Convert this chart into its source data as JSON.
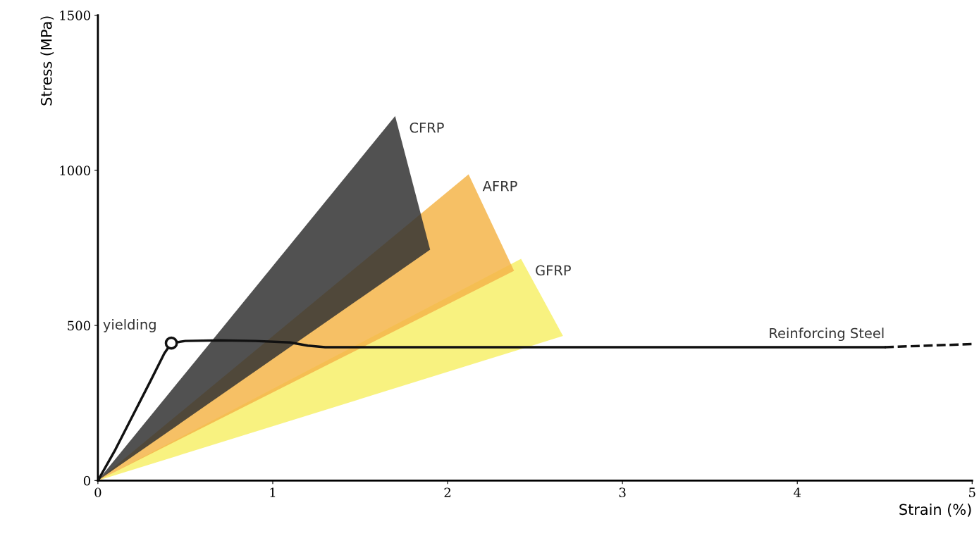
{
  "chart_data": {
    "type": "area",
    "xlabel": "Strain (%)",
    "ylabel": "Stress (MPa)",
    "xlim": [
      0,
      5
    ],
    "ylim": [
      0,
      1500
    ],
    "xticks": [
      0,
      1,
      2,
      3,
      4,
      5
    ],
    "yticks": [
      0,
      500,
      1000,
      1500
    ],
    "grid": false,
    "legend": false,
    "series": [
      {
        "name": "GFRP",
        "color": "#f7f06a",
        "x": [
          0,
          2.42,
          2.66
        ],
        "values": [
          0,
          715,
          466
        ]
      },
      {
        "name": "AFRP",
        "color": "#f5b54a",
        "x": [
          0,
          2.12,
          2.38
        ],
        "values": [
          0,
          987,
          676
        ]
      },
      {
        "name": "CFRP",
        "color": "#333333",
        "x": [
          0,
          1.7,
          1.9
        ],
        "values": [
          0,
          1175,
          744
        ]
      },
      {
        "name": "Reinforcing Steel",
        "type": "line",
        "color": "#111111",
        "line_style": "solid",
        "x": [
          0,
          0.1,
          0.2,
          0.3,
          0.38,
          0.42,
          0.5,
          0.7,
          0.9,
          1.1,
          1.2,
          1.3,
          2,
          3,
          4,
          4.5
        ],
        "values": [
          0,
          100,
          210,
          320,
          410,
          443,
          450,
          452,
          450,
          445,
          435,
          430,
          430,
          430,
          430,
          430
        ]
      },
      {
        "type": "line",
        "color": "#111111",
        "line_style": "dashed",
        "x": [
          4.5,
          5
        ],
        "values": [
          430,
          440
        ]
      },
      {
        "type": "scatter",
        "color": "#111111",
        "marker": "circle",
        "x": [
          0.42
        ],
        "values": [
          443
        ]
      }
    ],
    "annotations": [
      {
        "text": "yielding",
        "x": 0.42,
        "y": 443
      }
    ]
  }
}
